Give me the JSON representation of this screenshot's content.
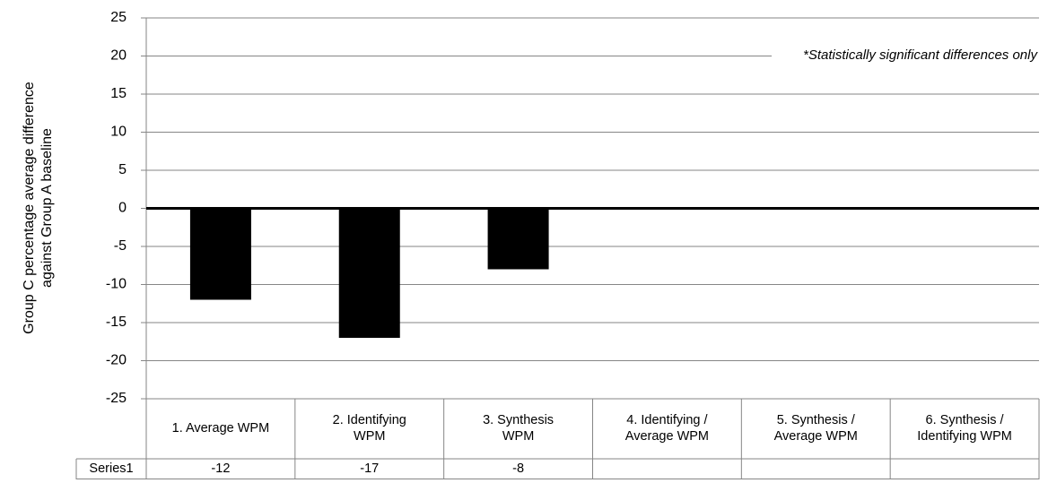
{
  "chart_data": {
    "type": "bar",
    "ylabel": "Group C percentage average  difference\nagainst Group A baseline",
    "annotation": "*Statistically significant differences only",
    "categories": [
      "1. Average WPM",
      "2. Identifying\nWPM",
      "3. Synthesis\nWPM",
      "4. Identifying /\nAverage WPM",
      "5. Synthesis /\nAverage WPM",
      "6. Synthesis /\nIdentifying WPM"
    ],
    "series": [
      {
        "name": "Series1",
        "color": "#000000",
        "values": [
          -12,
          -17,
          -8,
          null,
          null,
          null
        ]
      }
    ],
    "ylim": [
      -25,
      25
    ],
    "yticks": [
      -25,
      -20,
      -15,
      -10,
      -5,
      0,
      5,
      10,
      15,
      20,
      25
    ],
    "grid": true
  }
}
